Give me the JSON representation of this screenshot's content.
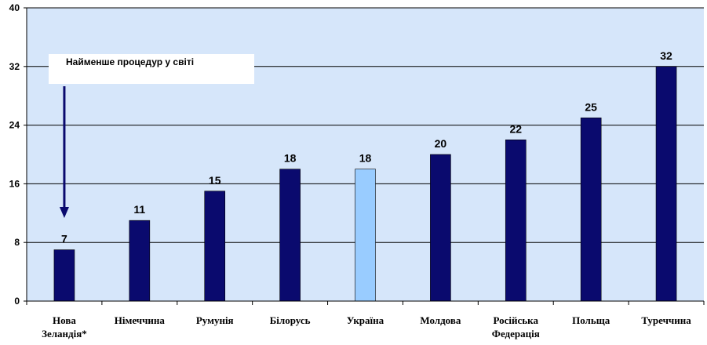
{
  "chart_data": {
    "type": "bar",
    "categories": [
      [
        "Нова",
        "Зеландія*"
      ],
      [
        "Німеччина"
      ],
      [
        "Румунія"
      ],
      [
        "Білорусь"
      ],
      [
        "Україна"
      ],
      [
        "Молдова"
      ],
      [
        "Російська",
        "Федерація"
      ],
      [
        "Польща"
      ],
      [
        "Туреччина"
      ]
    ],
    "values": [
      7,
      11,
      15,
      18,
      18,
      20,
      22,
      25,
      32
    ],
    "highlight_index": 4,
    "ylim": [
      0,
      40
    ],
    "yticks": [
      0,
      8,
      16,
      24,
      32,
      40
    ],
    "grid": true,
    "colors": {
      "bar": "#0a0a6e",
      "highlight": "#99ccff",
      "plot_bg": "#d6e6fa",
      "arrow": "#0a0a6e"
    },
    "annotation": {
      "text": "Найменше процедур у світі",
      "target_index": 0
    }
  }
}
